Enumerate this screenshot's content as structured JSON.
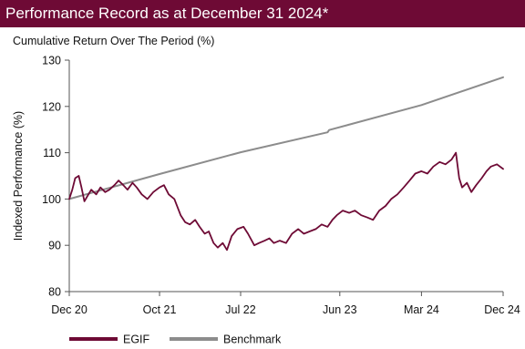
{
  "header": {
    "title": "Performance Record as at December 31 2024*"
  },
  "colors": {
    "header_bg": "#6e0a35",
    "egif": "#6e0a35",
    "benchmark": "#8c8c8c"
  },
  "chart_data": {
    "type": "line",
    "title": "Cumulative Return Over The Period (%)",
    "xlabel": "",
    "ylabel": "Indexed Performance (%)",
    "ylim": [
      80,
      130
    ],
    "yticks": [
      80,
      90,
      100,
      110,
      120,
      130
    ],
    "xlim": [
      "2020-12-31",
      "2024-12-31"
    ],
    "xticks": [
      {
        "date": "2020-12-31",
        "label": "Dec 20"
      },
      {
        "date": "2021-10-31",
        "label": "Oct 21"
      },
      {
        "date": "2022-07-31",
        "label": "Jul 22"
      },
      {
        "date": "2023-06-30",
        "label": "Jun 23"
      },
      {
        "date": "2024-03-31",
        "label": "Mar 24"
      },
      {
        "date": "2024-12-31",
        "label": "Dec 24"
      }
    ],
    "grid": false,
    "legend_position": "bottom-left",
    "series": [
      {
        "name": "EGIF",
        "color": "#6e0a35",
        "points": [
          [
            "2020-12-31",
            100.0
          ],
          [
            "2021-01-10",
            102.0
          ],
          [
            "2021-01-20",
            104.5
          ],
          [
            "2021-02-01",
            105.0
          ],
          [
            "2021-02-10",
            102.5
          ],
          [
            "2021-02-20",
            99.5
          ],
          [
            "2021-03-01",
            100.5
          ],
          [
            "2021-03-15",
            102.0
          ],
          [
            "2021-04-01",
            101.0
          ],
          [
            "2021-04-15",
            102.5
          ],
          [
            "2021-05-01",
            101.5
          ],
          [
            "2021-05-15",
            102.0
          ],
          [
            "2021-06-01",
            103.0
          ],
          [
            "2021-06-15",
            104.0
          ],
          [
            "2021-07-01",
            103.0
          ],
          [
            "2021-07-15",
            102.0
          ],
          [
            "2021-08-01",
            103.5
          ],
          [
            "2021-08-15",
            102.5
          ],
          [
            "2021-09-01",
            101.0
          ],
          [
            "2021-09-20",
            100.0
          ],
          [
            "2021-10-10",
            101.5
          ],
          [
            "2021-10-31",
            102.5
          ],
          [
            "2021-11-15",
            103.0
          ],
          [
            "2021-12-01",
            101.0
          ],
          [
            "2021-12-20",
            100.0
          ],
          [
            "2022-01-10",
            96.5
          ],
          [
            "2022-01-25",
            95.0
          ],
          [
            "2022-02-10",
            94.5
          ],
          [
            "2022-02-28",
            95.5
          ],
          [
            "2022-03-15",
            94.0
          ],
          [
            "2022-04-01",
            92.5
          ],
          [
            "2022-04-15",
            93.0
          ],
          [
            "2022-05-01",
            90.5
          ],
          [
            "2022-05-15",
            89.5
          ],
          [
            "2022-06-01",
            90.5
          ],
          [
            "2022-06-15",
            89.0
          ],
          [
            "2022-07-01",
            92.0
          ],
          [
            "2022-07-20",
            93.5
          ],
          [
            "2022-08-10",
            94.0
          ],
          [
            "2022-08-25",
            92.5
          ],
          [
            "2022-09-15",
            90.0
          ],
          [
            "2022-10-01",
            90.5
          ],
          [
            "2022-10-20",
            91.0
          ],
          [
            "2022-11-05",
            91.5
          ],
          [
            "2022-11-20",
            90.5
          ],
          [
            "2022-12-10",
            91.0
          ],
          [
            "2022-12-31",
            90.5
          ],
          [
            "2023-01-20",
            92.5
          ],
          [
            "2023-02-10",
            93.5
          ],
          [
            "2023-03-01",
            92.5
          ],
          [
            "2023-03-20",
            93.0
          ],
          [
            "2023-04-10",
            93.5
          ],
          [
            "2023-04-30",
            94.5
          ],
          [
            "2023-05-20",
            94.0
          ],
          [
            "2023-06-05",
            95.5
          ],
          [
            "2023-06-20",
            96.5
          ],
          [
            "2023-07-10",
            97.5
          ],
          [
            "2023-08-01",
            97.0
          ],
          [
            "2023-08-20",
            97.5
          ],
          [
            "2023-09-10",
            96.5
          ],
          [
            "2023-10-01",
            96.0
          ],
          [
            "2023-10-20",
            95.5
          ],
          [
            "2023-11-10",
            97.5
          ],
          [
            "2023-12-01",
            98.5
          ],
          [
            "2023-12-20",
            100.0
          ],
          [
            "2024-01-10",
            101.0
          ],
          [
            "2024-01-31",
            102.5
          ],
          [
            "2024-02-20",
            104.0
          ],
          [
            "2024-03-10",
            105.5
          ],
          [
            "2024-03-31",
            106.0
          ],
          [
            "2024-04-20",
            105.5
          ],
          [
            "2024-05-10",
            107.0
          ],
          [
            "2024-05-31",
            108.0
          ],
          [
            "2024-06-20",
            107.5
          ],
          [
            "2024-07-10",
            108.5
          ],
          [
            "2024-07-25",
            110.0
          ],
          [
            "2024-08-05",
            104.5
          ],
          [
            "2024-08-15",
            102.5
          ],
          [
            "2024-08-31",
            103.5
          ],
          [
            "2024-09-15",
            101.5
          ],
          [
            "2024-10-01",
            103.0
          ],
          [
            "2024-10-20",
            104.5
          ],
          [
            "2024-11-05",
            106.0
          ],
          [
            "2024-11-20",
            107.0
          ],
          [
            "2024-12-10",
            107.5
          ],
          [
            "2024-12-31",
            106.5
          ]
        ]
      },
      {
        "name": "Benchmark",
        "color": "#8c8c8c",
        "points": [
          [
            "2020-12-31",
            100.0
          ],
          [
            "2021-10-31",
            105.4
          ],
          [
            "2022-07-31",
            110.1
          ],
          [
            "2023-05-20",
            114.4
          ],
          [
            "2023-05-25",
            114.9
          ],
          [
            "2024-03-31",
            120.3
          ],
          [
            "2024-12-31",
            126.3
          ]
        ]
      }
    ]
  }
}
